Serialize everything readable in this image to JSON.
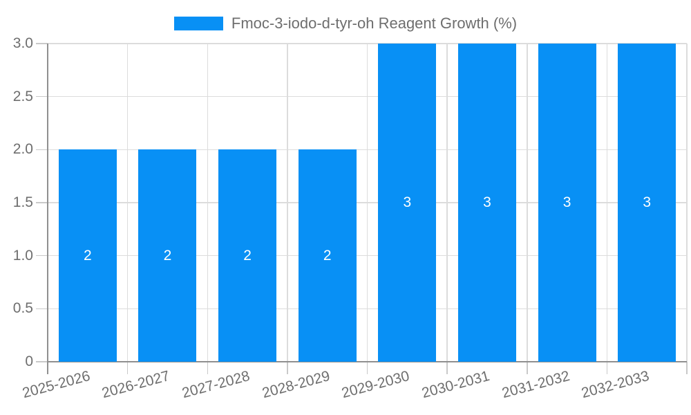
{
  "chart_data": {
    "type": "bar",
    "legend": "Fmoc-3-iodo-d-tyr-oh Reagent Growth (%)",
    "legend_position": "top",
    "categories": [
      "2025-2026",
      "2026-2027",
      "2027-2028",
      "2028-2029",
      "2029-2030",
      "2030-2031",
      "2031-2032",
      "2032-2033"
    ],
    "values": [
      2,
      2,
      2,
      2,
      3,
      3,
      3,
      3
    ],
    "bar_labels": [
      "2",
      "2",
      "2",
      "2",
      "3",
      "3",
      "3",
      "3"
    ],
    "xlabel": "",
    "ylabel": "",
    "ylim": [
      0,
      3
    ],
    "yticks": [
      {
        "value": 0,
        "label": "0"
      },
      {
        "value": 0.5,
        "label": "0.5"
      },
      {
        "value": 1,
        "label": "1.0"
      },
      {
        "value": 1.5,
        "label": "1.5"
      },
      {
        "value": 2,
        "label": "2.0"
      },
      {
        "value": 2.5,
        "label": "2.5"
      },
      {
        "value": 3,
        "label": "3.0"
      }
    ],
    "grid": true,
    "x_label_rotation_deg": -15,
    "colors": {
      "bar": "#0890f5",
      "grid": "#dcdcdc",
      "tick": "#c9c9c9",
      "axis": "#8f8f8f",
      "text": "#6e6e6e",
      "bar_label": "#ffffff",
      "background": "#ffffff"
    }
  }
}
